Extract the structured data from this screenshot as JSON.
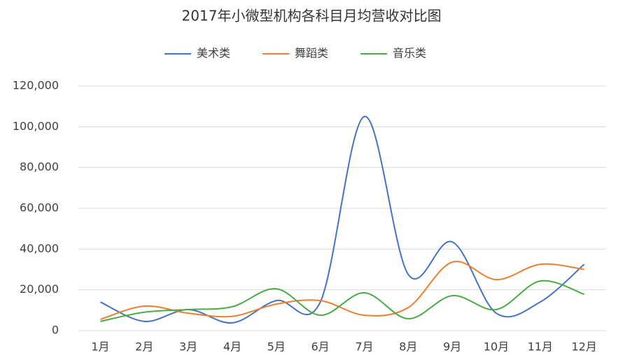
{
  "chart_data": {
    "type": "line",
    "title": "2017年小微型机构各科目月均营收对比图",
    "categories": [
      "1月",
      "2月",
      "3月",
      "4月",
      "5月",
      "6月",
      "7月",
      "8月",
      "9月",
      "10月",
      "11月",
      "12月"
    ],
    "series": [
      {
        "name": "美术类",
        "color": "#4472c4",
        "values": [
          14000,
          4500,
          10300,
          3800,
          14700,
          14000,
          105000,
          27500,
          43500,
          8500,
          14000,
          32500
        ]
      },
      {
        "name": "舞蹈类",
        "color": "#ed7d31",
        "values": [
          5500,
          12000,
          8500,
          7000,
          13000,
          14700,
          7500,
          11300,
          33600,
          25000,
          32500,
          30000
        ]
      },
      {
        "name": "音乐类",
        "color": "#4aab45",
        "values": [
          4500,
          9000,
          10300,
          11700,
          20500,
          7500,
          18500,
          5800,
          17100,
          10300,
          24300,
          17800
        ]
      }
    ],
    "ylim": [
      0,
      120000
    ],
    "yticks": [
      0,
      {
        "value": 20000,
        "label": "20,000"
      },
      {
        "value": 40000,
        "label": "40,000"
      },
      {
        "value": 60000,
        "label": "60,000"
      },
      {
        "value": 80000,
        "label": "80,000"
      },
      {
        "value": 100000,
        "label": "100,000"
      },
      {
        "value": 120000,
        "label": "120,000"
      }
    ],
    "grid": true,
    "smooth": true,
    "legend": "top"
  }
}
